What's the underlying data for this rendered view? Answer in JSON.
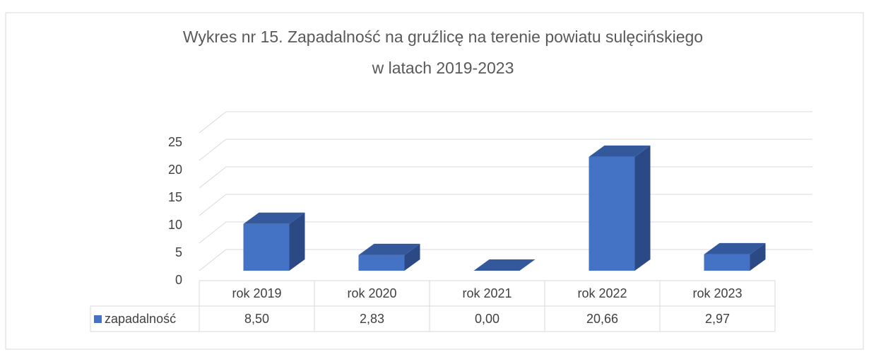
{
  "chart_data": {
    "type": "bar",
    "title": [
      "Wykres nr 15. Zapadalność na gruźlicę na terenie powiatu sulęcińskiego",
      "w latach 2019-2023"
    ],
    "categories": [
      "rok 2019",
      "rok 2020",
      "rok 2021",
      "rok 2022",
      "rok 2023"
    ],
    "series": [
      {
        "name": "zapadalność",
        "color": "#4472c4",
        "values": [
          8.5,
          2.83,
          0.0,
          20.66,
          2.97
        ],
        "value_labels": [
          "8,50",
          "2,83",
          "0,00",
          "20,66",
          "2,97"
        ]
      }
    ],
    "ylim": [
      0,
      25
    ],
    "yticks": [
      0,
      5,
      10,
      15,
      20,
      25
    ],
    "grid": true
  }
}
